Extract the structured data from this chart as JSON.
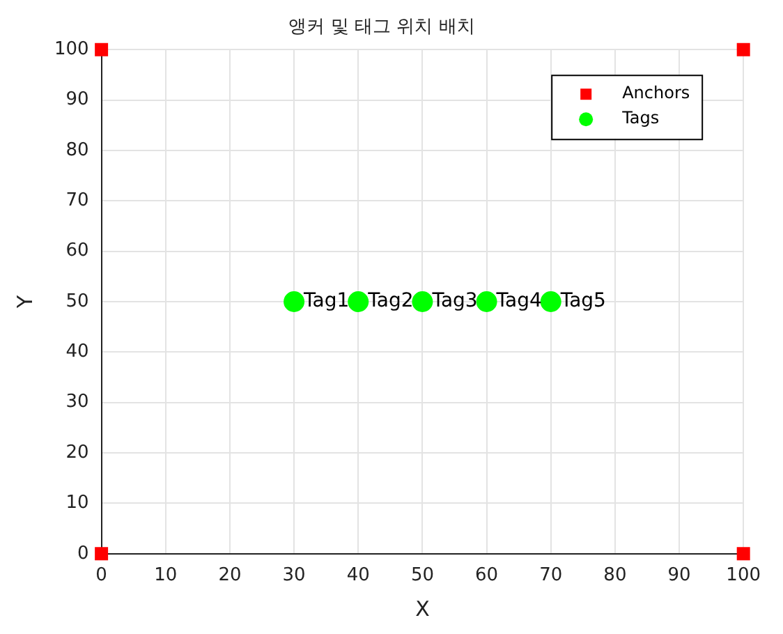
{
  "chart_data": {
    "type": "scatter",
    "title": "앵커 및 태그 위치 배치",
    "xlabel": "X",
    "ylabel": "Y",
    "series": [
      {
        "name": "Anchors",
        "color": "#ff0000",
        "marker": "square",
        "x": [
          0,
          100,
          0,
          100
        ],
        "values": [
          0,
          0,
          100,
          100
        ]
      },
      {
        "name": "Tags",
        "color": "#00ff00",
        "marker": "circle",
        "x": [
          30,
          40,
          50,
          60,
          70
        ],
        "values": [
          50,
          50,
          50,
          50,
          50
        ]
      }
    ],
    "annotations": [
      {
        "text": "Tag1",
        "x": 30,
        "y": 50
      },
      {
        "text": "Tag2",
        "x": 40,
        "y": 50
      },
      {
        "text": "Tag3",
        "x": 50,
        "y": 50
      },
      {
        "text": "Tag4",
        "x": 60,
        "y": 50
      },
      {
        "text": "Tag5",
        "x": 70,
        "y": 50
      }
    ],
    "xlim": [
      0,
      100
    ],
    "ylim": [
      0,
      100
    ],
    "xticks": [
      0,
      10,
      20,
      30,
      40,
      50,
      60,
      70,
      80,
      90,
      100
    ],
    "yticks": [
      0,
      10,
      20,
      30,
      40,
      50,
      60,
      70,
      80,
      90,
      100
    ],
    "grid": true,
    "legend": "top right"
  }
}
